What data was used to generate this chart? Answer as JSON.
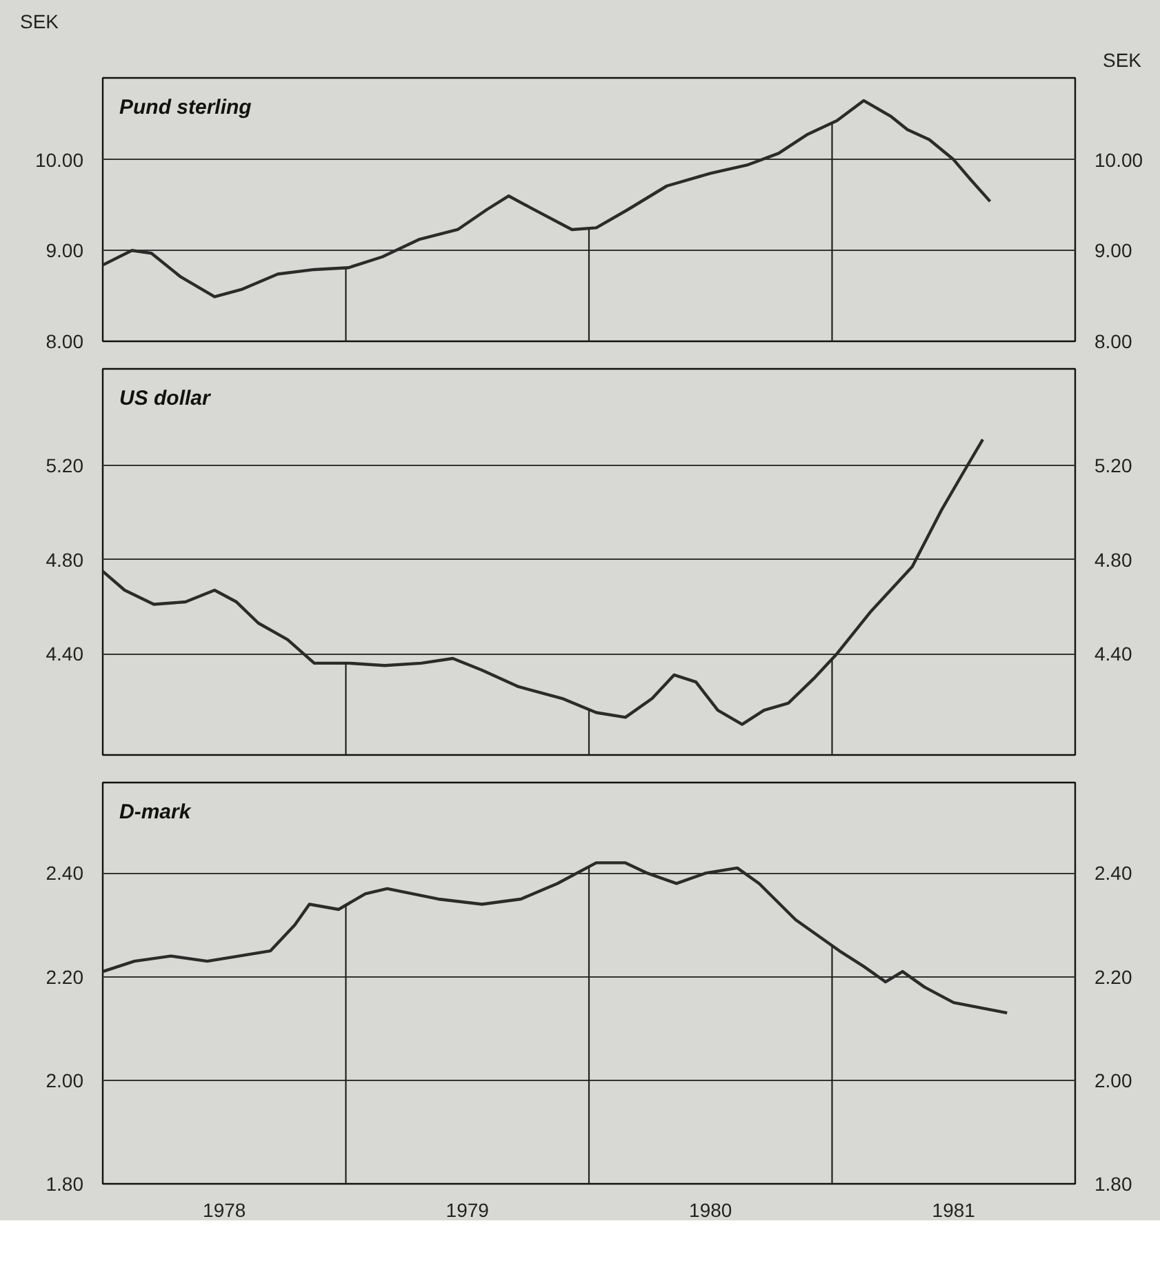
{
  "chart_data": [
    {
      "type": "line",
      "title": "Pund sterling",
      "ylabel": "SEK",
      "y2label": "SEK",
      "xlim": [
        1978,
        1982
      ],
      "ylim": [
        8,
        10.9
      ],
      "yticks": [
        {
          "value": 8,
          "label": "8.00"
        },
        {
          "value": 9,
          "label": "9.00"
        },
        {
          "value": 10,
          "label": "10.00"
        }
      ],
      "y2lim": [
        8,
        10.9
      ],
      "y2ticks": [
        {
          "value": 8,
          "label": "8.00"
        },
        {
          "value": 9,
          "label": "9.00"
        },
        {
          "value": 10,
          "label": "10.00"
        }
      ],
      "grid": "y",
      "tick_labels": "y",
      "ref_lines": [
        {
          "axis": "x",
          "value": 1979
        },
        {
          "axis": "x",
          "value": 1980
        },
        {
          "axis": "x",
          "value": 1981
        }
      ],
      "series": [
        {
          "color": "#2b2b2b",
          "x": [
            1978.0,
            1978.12,
            1978.2,
            1978.32,
            1978.46,
            1978.57,
            1978.72,
            1978.87,
            1979.01,
            1979.15,
            1979.3,
            1979.46,
            1979.58,
            1979.67,
            1979.76,
            1979.93,
            1980.03,
            1980.16,
            1980.32,
            1980.5,
            1980.65,
            1980.78,
            1980.9,
            1981.02,
            1981.13,
            1981.24,
            1981.31,
            1981.4,
            1981.5,
            1981.57,
            1981.65
          ],
          "values": [
            8.84,
            9.0,
            8.97,
            8.71,
            8.49,
            8.57,
            8.74,
            8.79,
            8.81,
            8.93,
            9.12,
            9.23,
            9.45,
            9.6,
            9.47,
            9.23,
            9.25,
            9.45,
            9.71,
            9.85,
            9.94,
            10.07,
            10.28,
            10.43,
            10.65,
            10.48,
            10.33,
            10.22,
            10.0,
            9.78,
            9.54
          ]
        }
      ]
    },
    {
      "type": "line",
      "title": "US dollar",
      "xlim": [
        1978,
        1982
      ],
      "ylim": [
        3.97,
        5.61
      ],
      "yticks": [
        {
          "value": 4.4,
          "label": "4.40"
        },
        {
          "value": 4.8,
          "label": "4.80"
        },
        {
          "value": 5.2,
          "label": "5.20"
        }
      ],
      "y2lim": [
        3.97,
        5.61
      ],
      "y2ticks": [
        {
          "value": 4.4,
          "label": "4.40"
        },
        {
          "value": 4.8,
          "label": "4.80"
        },
        {
          "value": 5.2,
          "label": "5.20"
        }
      ],
      "grid": "y",
      "tick_labels": "y",
      "ref_lines": [
        {
          "axis": "x",
          "value": 1979
        },
        {
          "axis": "x",
          "value": 1980
        },
        {
          "axis": "x",
          "value": 1981
        }
      ],
      "series": [
        {
          "color": "#2b2b2b",
          "x": [
            1978.0,
            1978.09,
            1978.21,
            1978.34,
            1978.46,
            1978.55,
            1978.64,
            1978.76,
            1978.87,
            1979.01,
            1979.16,
            1979.31,
            1979.44,
            1979.56,
            1979.71,
            1979.89,
            1980.03,
            1980.15,
            1980.26,
            1980.35,
            1980.44,
            1980.53,
            1980.63,
            1980.72,
            1980.82,
            1980.93,
            1981.02,
            1981.16,
            1981.33,
            1981.45,
            1981.54,
            1981.62
          ],
          "values": [
            4.75,
            4.67,
            4.61,
            4.62,
            4.67,
            4.62,
            4.53,
            4.46,
            4.36,
            4.36,
            4.35,
            4.36,
            4.38,
            4.33,
            4.26,
            4.21,
            4.15,
            4.13,
            4.21,
            4.31,
            4.28,
            4.16,
            4.1,
            4.16,
            4.19,
            4.3,
            4.4,
            4.58,
            4.77,
            5.01,
            5.17,
            5.31
          ]
        }
      ]
    },
    {
      "type": "line",
      "title": "D-mark",
      "xlim": [
        1978,
        1982
      ],
      "xticks": [
        {
          "value": 1978.5,
          "label": "1978"
        },
        {
          "value": 1979.5,
          "label": "1979"
        },
        {
          "value": 1980.5,
          "label": "1980"
        },
        {
          "value": 1981.5,
          "label": "1981"
        }
      ],
      "ylim": [
        1.8,
        2.575
      ],
      "yticks": [
        {
          "value": 1.8,
          "label": "1.80"
        },
        {
          "value": 2.0,
          "label": "2.00"
        },
        {
          "value": 2.2,
          "label": "2.20"
        },
        {
          "value": 2.4,
          "label": "2.40"
        }
      ],
      "y2lim": [
        1.8,
        2.575
      ],
      "y2ticks": [
        {
          "value": 1.8,
          "label": "1.80"
        },
        {
          "value": 2.0,
          "label": "2.00"
        },
        {
          "value": 2.2,
          "label": "2.20"
        },
        {
          "value": 2.4,
          "label": "2.40"
        }
      ],
      "grid": "y",
      "ref_lines": [
        {
          "axis": "x",
          "value": 1979
        },
        {
          "axis": "x",
          "value": 1980
        },
        {
          "axis": "x",
          "value": 1981
        }
      ],
      "series": [
        {
          "color": "#2b2b2b",
          "x": [
            1978.0,
            1978.13,
            1978.28,
            1978.43,
            1978.56,
            1978.69,
            1978.79,
            1978.85,
            1978.97,
            1979.08,
            1979.17,
            1979.38,
            1979.56,
            1979.72,
            1979.87,
            1980.03,
            1980.15,
            1980.24,
            1980.36,
            1980.48,
            1980.61,
            1980.7,
            1980.85,
            1981.03,
            1981.13,
            1981.22,
            1981.29,
            1981.38,
            1981.5,
            1981.72
          ],
          "values": [
            2.21,
            2.23,
            2.24,
            2.23,
            2.24,
            2.25,
            2.3,
            2.34,
            2.33,
            2.36,
            2.37,
            2.35,
            2.34,
            2.35,
            2.38,
            2.42,
            2.42,
            2.4,
            2.38,
            2.4,
            2.41,
            2.38,
            2.31,
            2.25,
            2.22,
            2.19,
            2.21,
            2.18,
            2.15,
            2.13
          ]
        }
      ]
    }
  ]
}
